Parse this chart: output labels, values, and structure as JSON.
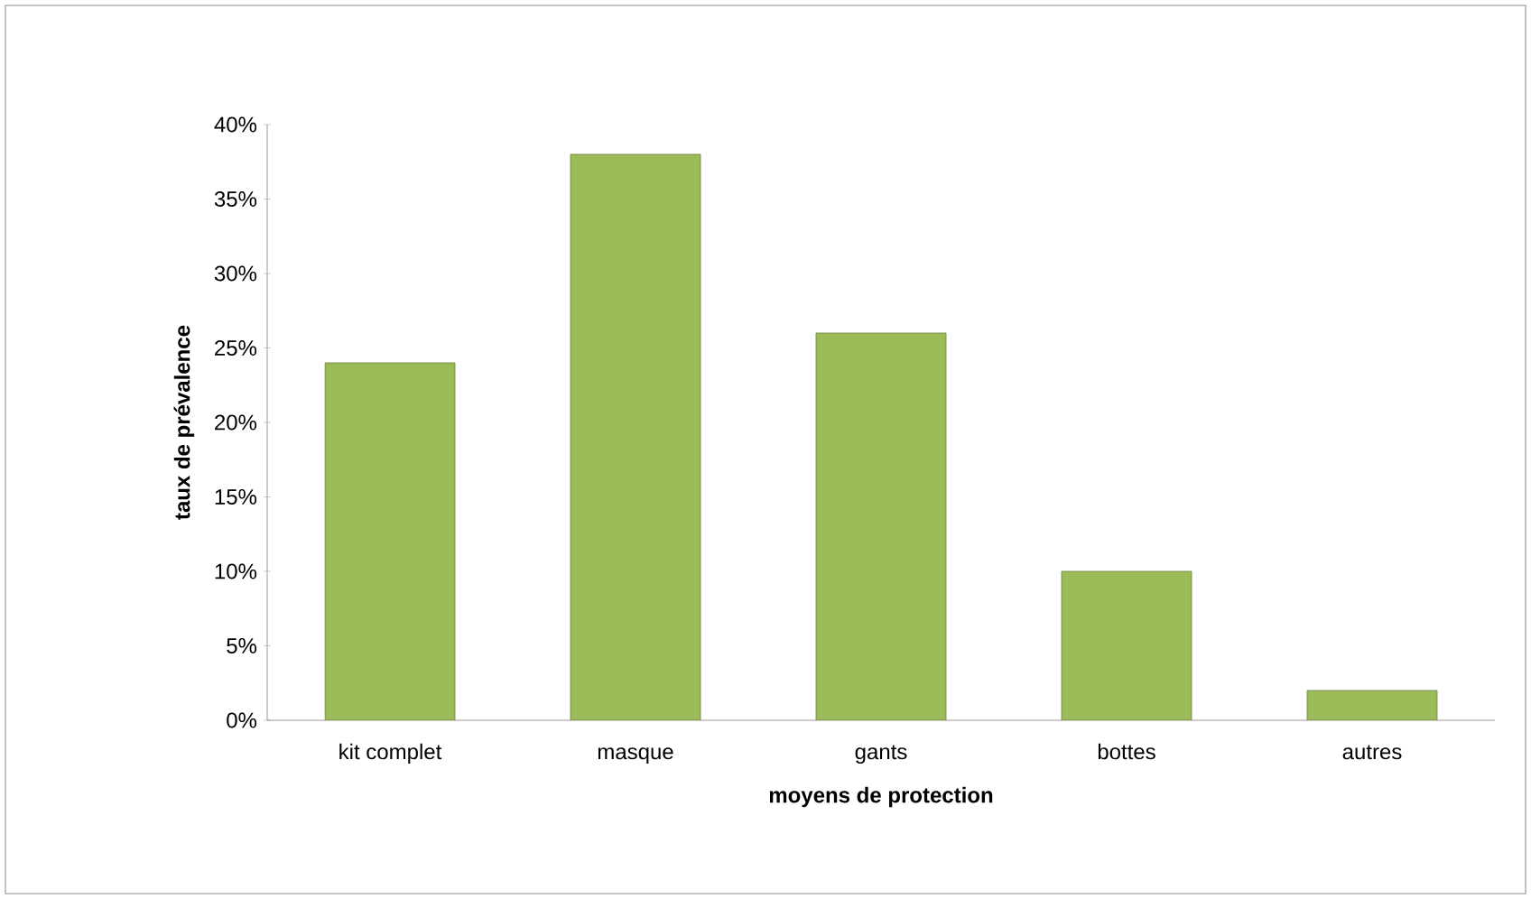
{
  "chart_data": {
    "type": "bar",
    "xlabel": "moyens de protection",
    "ylabel": "taux de prévalence",
    "categories": [
      "kit complet",
      "masque",
      "gants",
      "bottes",
      "autres"
    ],
    "values": [
      24,
      38,
      26,
      10,
      2
    ],
    "color": "#9bbb59",
    "ylim": [
      0,
      40
    ],
    "yticks": [
      {
        "value": 0,
        "label": "0%"
      },
      {
        "value": 5,
        "label": "5%"
      },
      {
        "value": 10,
        "label": "10%"
      },
      {
        "value": 15,
        "label": "15%"
      },
      {
        "value": 20,
        "label": "20%"
      },
      {
        "value": 25,
        "label": "25%"
      },
      {
        "value": 30,
        "label": "30%"
      },
      {
        "value": 35,
        "label": "35%"
      },
      {
        "value": 40,
        "label": "40%"
      }
    ],
    "grid": false
  }
}
